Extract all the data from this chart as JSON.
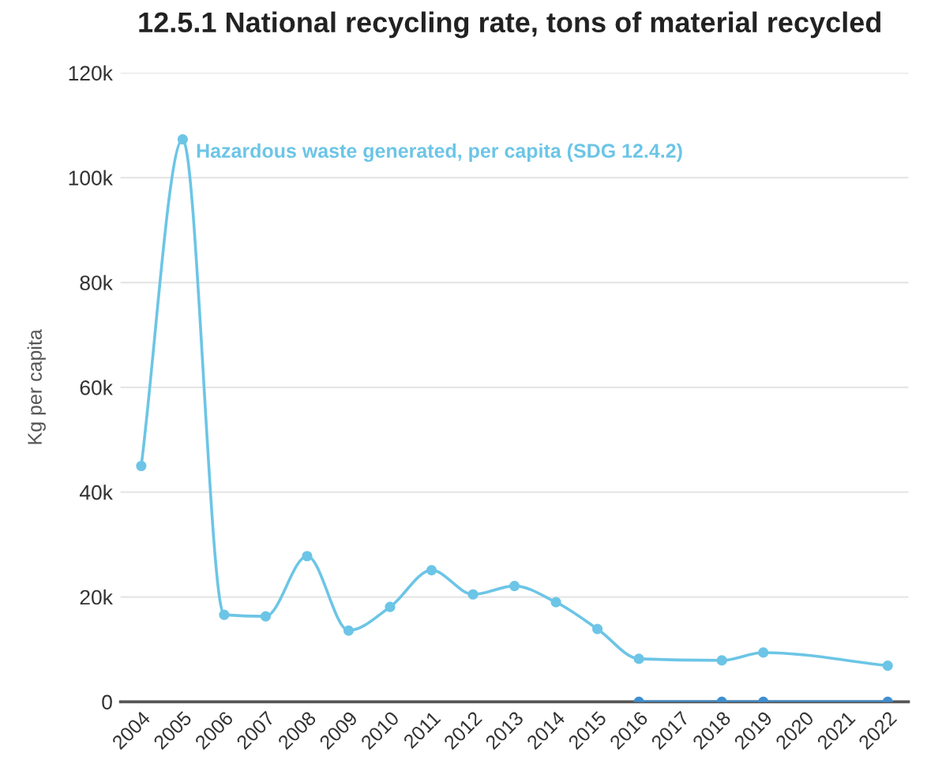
{
  "chart_data": {
    "type": "line",
    "title": "12.5.1 National recycling rate, tons of material recycled",
    "ylabel": "Kg per capita",
    "categories": [
      "2004",
      "2005",
      "2006",
      "2007",
      "2008",
      "2009",
      "2010",
      "2011",
      "2012",
      "2013",
      "2014",
      "2015",
      "2016",
      "2017",
      "2018",
      "2019",
      "2020",
      "2021",
      "2022"
    ],
    "series": [
      {
        "name": "Hazardous waste generated, per capita (SDG 12.4.2)",
        "color": "#6cc5e6",
        "values": [
          45000,
          107300,
          16600,
          16300,
          27800,
          13600,
          18100,
          25100,
          20500,
          22100,
          19000,
          13900,
          8200,
          null,
          7900,
          9400,
          null,
          null,
          6900
        ]
      },
      {
        "color": "#3f8fd0",
        "values": [
          null,
          null,
          null,
          null,
          null,
          null,
          null,
          null,
          null,
          null,
          null,
          null,
          0,
          null,
          0,
          0,
          null,
          null,
          0
        ]
      }
    ],
    "ylim": [
      0,
      120000
    ],
    "yticks": [
      0,
      {
        "value": 20000,
        "label": "20k"
      },
      {
        "value": 40000,
        "label": "40k"
      },
      {
        "value": 60000,
        "label": "60k"
      },
      {
        "value": 80000,
        "label": "80k"
      },
      {
        "value": 100000,
        "label": "100k"
      },
      {
        "value": 120000,
        "label": "120k"
      }
    ],
    "grid": "y",
    "marker": "circle",
    "legend": false
  }
}
